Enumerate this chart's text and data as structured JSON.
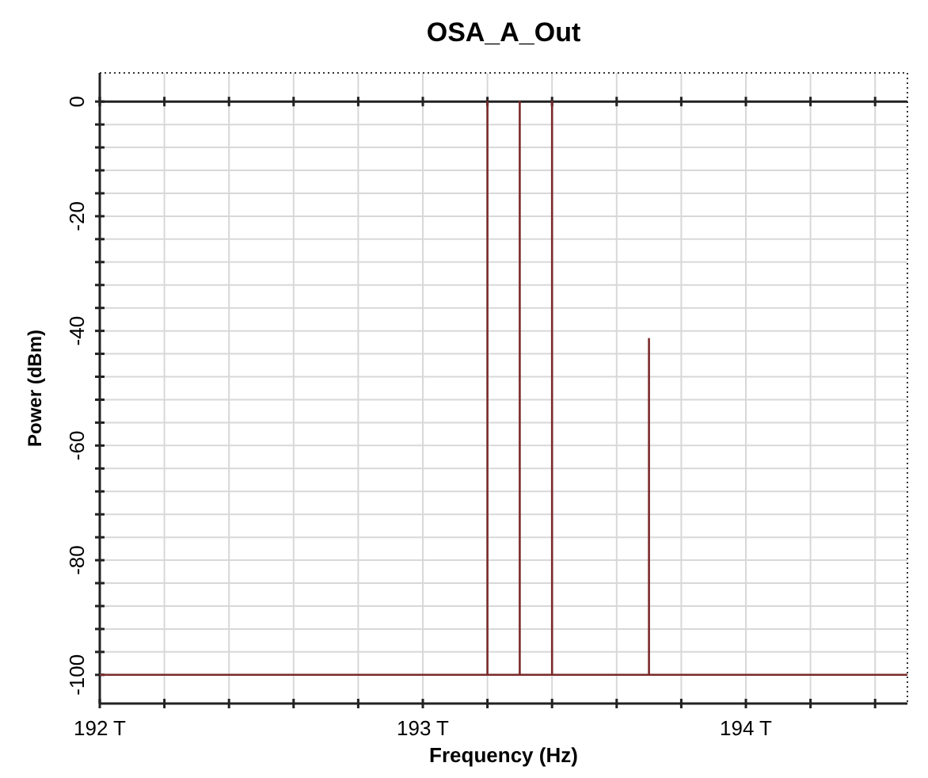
{
  "chart_data": {
    "type": "line",
    "title": "OSA_A_Out",
    "xlabel": "Frequency (Hz)",
    "ylabel": "Power (dBm)",
    "series": [
      {
        "color": "#7b2a2a",
        "x": [
          192,
          193.2,
          193.2,
          193.2,
          193.3,
          193.3,
          193.3,
          193.4,
          193.4,
          193.4,
          193.7,
          193.7,
          193.7,
          194.5
        ],
        "values": [
          -100,
          -100,
          0,
          -100,
          -100,
          0,
          -100,
          -100,
          0,
          -100,
          -100,
          -41.4,
          -100,
          -100
        ]
      }
    ],
    "xlim": [
      192,
      194.5
    ],
    "ylim": [
      -105,
      5
    ],
    "xticks": [
      {
        "value": 192,
        "label": "192 T"
      },
      {
        "value": 192.2,
        "label": null
      },
      {
        "value": 192.4,
        "label": null
      },
      {
        "value": 192.6,
        "label": null
      },
      {
        "value": 192.8,
        "label": null
      },
      {
        "value": 193,
        "label": "193 T"
      },
      {
        "value": 193.2,
        "label": null
      },
      {
        "value": 193.4,
        "label": null
      },
      {
        "value": 193.6,
        "label": null
      },
      {
        "value": 193.8,
        "label": null
      },
      {
        "value": 194,
        "label": "194 T"
      },
      {
        "value": 194.2,
        "label": null
      },
      {
        "value": 194.4,
        "label": null
      }
    ],
    "yticks": [
      -100,
      {
        "value": -96,
        "label": null
      },
      {
        "value": -92,
        "label": null
      },
      {
        "value": -88,
        "label": null
      },
      {
        "value": -84,
        "label": null
      },
      -80,
      {
        "value": -76,
        "label": null
      },
      {
        "value": -72,
        "label": null
      },
      {
        "value": -68,
        "label": null
      },
      {
        "value": -64,
        "label": null
      },
      -60,
      {
        "value": -56,
        "label": null
      },
      {
        "value": -52,
        "label": null
      },
      {
        "value": -48,
        "label": null
      },
      {
        "value": -44,
        "label": null
      },
      -40,
      {
        "value": -36,
        "label": null
      },
      {
        "value": -32,
        "label": null
      },
      {
        "value": -28,
        "label": null
      },
      {
        "value": -24,
        "label": null
      },
      -20,
      {
        "value": -16,
        "label": null
      },
      {
        "value": -12,
        "label": null
      },
      {
        "value": -8,
        "label": null
      },
      {
        "value": -4,
        "label": null
      },
      0
    ],
    "grid": true,
    "marker": "none",
    "line_style": "solid",
    "ref_lines": [
      {
        "axis": "y",
        "value": 0,
        "color": "#222222"
      }
    ]
  }
}
